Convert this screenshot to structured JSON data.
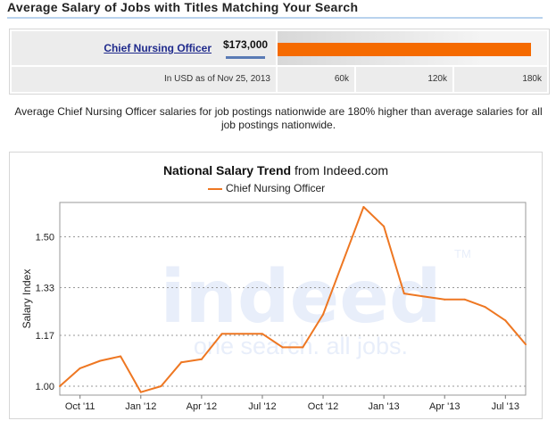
{
  "page_title": "Average Salary of Jobs with Titles Matching Your Search",
  "salary_panel": {
    "job_title": "Chief Nursing Officer",
    "salary": "$173,000",
    "salary_fraction": 0.9611,
    "bar_color": "#f56a00",
    "currency_note": "In USD as of Nov 25, 2013",
    "scale_labels": [
      "60k",
      "120k",
      "180k"
    ]
  },
  "summary": "Average Chief Nursing Officer salaries for job postings nationwide are 180% higher than average salaries for all job postings nationwide.",
  "trend": {
    "title_bold": "National Salary Trend",
    "title_rest": " from Indeed.com",
    "watermark_logo": "indeed",
    "watermark_tm": "TM",
    "watermark_tagline": "one search. all jobs.",
    "watermark_color": "#e8eefa"
  },
  "chart_data": {
    "type": "line",
    "ylabel": "Salary Index",
    "xlabel": "",
    "ylim": [
      0.97,
      1.615
    ],
    "yticks": [
      1.0,
      1.17,
      1.33,
      1.5
    ],
    "ytick_labels": [
      "1.00",
      "1.17",
      "1.33",
      "1.50"
    ],
    "x_tick_labels": [
      "Oct '11",
      "Jan '12",
      "Apr '12",
      "Jul '12",
      "Oct '12",
      "Jan '13",
      "Apr '13",
      "Jul '13"
    ],
    "x_tick_index": [
      1,
      4,
      7,
      10,
      13,
      16,
      19,
      22
    ],
    "grid": true,
    "series": [
      {
        "name": "Chief Nursing Officer",
        "color": "#ee7722",
        "x": [
          "Sep '11",
          "Oct '11",
          "Nov '11",
          "Dec '11",
          "Jan '12",
          "Feb '12",
          "Mar '12",
          "Apr '12",
          "May '12",
          "Jun '12",
          "Jul '12",
          "Aug '12",
          "Sep '12",
          "Oct '12",
          "Nov '12",
          "Dec '12",
          "Jan '13",
          "Feb '13",
          "Mar '13",
          "Apr '13",
          "May '13",
          "Jun '13",
          "Jul '13",
          "Aug '13"
        ],
        "values": [
          1.0,
          1.06,
          1.085,
          1.1,
          0.98,
          1.0,
          1.08,
          1.09,
          1.175,
          1.175,
          1.175,
          1.13,
          1.13,
          1.24,
          1.42,
          1.6,
          1.535,
          1.31,
          1.3,
          1.29,
          1.29,
          1.265,
          1.22,
          1.14
        ]
      }
    ]
  }
}
